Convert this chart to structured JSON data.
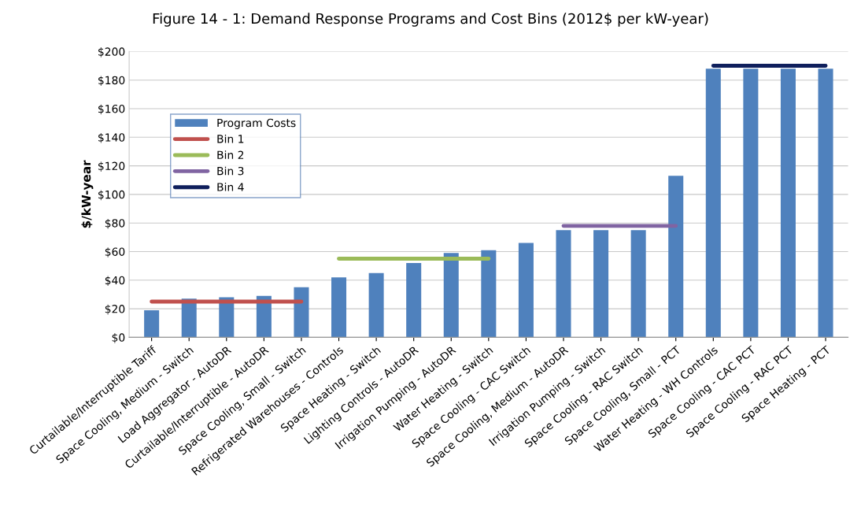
{
  "chart_data": {
    "type": "bar",
    "title": "Figure 14 - 1: Demand Response Programs and Cost Bins (2012$ per kW-year)",
    "ylabel": "$/kW-year",
    "categories": [
      "Curtailable/Interruptible Tariff",
      "Space Cooling, Medium - Switch",
      "Load Aggregator - AutoDR",
      "Curtailable/Interruptible - AutoDR",
      "Space Cooling, Small - Switch",
      "Refrigerated Warehouses - Controls",
      "Space Heating - Switch",
      "Lighting Controls - AutoDR",
      "Irrigation Pumping - AutoDR",
      "Water Heating - Switch",
      "Space Cooling - CAC Switch",
      "Space Cooling, Medium - AutoDR",
      "Irrigation Pumping - Switch",
      "Space Cooling - RAC Switch",
      "Space Cooling, Small - PCT",
      "Water Heating - WH Controls",
      "Space Cooling - CAC PCT",
      "Space Cooling - RAC PCT",
      "Space Heating - PCT"
    ],
    "series": [
      {
        "name": "Program Costs",
        "color": "#4f81bd",
        "values": [
          19,
          27,
          28,
          29,
          35,
          42,
          45,
          52,
          59,
          61,
          66,
          75,
          75,
          75,
          113,
          188,
          188,
          188,
          188
        ]
      },
      {
        "name": "Bin 1",
        "type": "line",
        "color": "#c0504d",
        "values": [
          25,
          25,
          25,
          25,
          25,
          null,
          null,
          null,
          null,
          null,
          null,
          null,
          null,
          null,
          null,
          null,
          null,
          null,
          null
        ]
      },
      {
        "name": "Bin 2",
        "type": "line",
        "color": "#9bbb59",
        "values": [
          null,
          null,
          null,
          null,
          null,
          55,
          55,
          55,
          55,
          55,
          null,
          null,
          null,
          null,
          null,
          null,
          null,
          null,
          null
        ]
      },
      {
        "name": "Bin 3",
        "type": "line",
        "color": "#8064a2",
        "values": [
          null,
          null,
          null,
          null,
          null,
          null,
          null,
          null,
          null,
          null,
          null,
          78,
          78,
          78,
          78,
          null,
          null,
          null,
          null
        ]
      },
      {
        "name": "Bin 4",
        "type": "line",
        "color": "#0f1f5c",
        "values": [
          null,
          null,
          null,
          null,
          null,
          null,
          null,
          null,
          null,
          null,
          null,
          null,
          null,
          null,
          null,
          190,
          190,
          190,
          190
        ]
      }
    ],
    "ylim": [
      0,
      200
    ],
    "yticks": [
      {
        "value": 0,
        "label": "$0"
      },
      {
        "value": 20,
        "label": "$20"
      },
      {
        "value": 40,
        "label": "$40"
      },
      {
        "value": 60,
        "label": "$60"
      },
      {
        "value": 80,
        "label": "$80"
      },
      {
        "value": 100,
        "label": "$100"
      },
      {
        "value": 120,
        "label": "$120"
      },
      {
        "value": 140,
        "label": "$140"
      },
      {
        "value": 160,
        "label": "$160"
      },
      {
        "value": 180,
        "label": "$180"
      },
      {
        "value": 200,
        "label": "$200"
      }
    ],
    "grid": "y",
    "legend": "top left",
    "marker": "none",
    "line_style": "solid"
  }
}
